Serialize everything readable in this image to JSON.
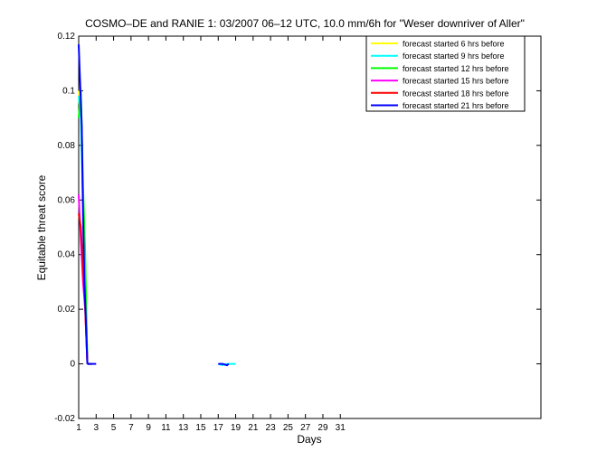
{
  "chart_data": {
    "type": "line",
    "title": "COSMO–DE and RANIE 1: 03/2007 06–12 UTC, 10.0 mm/6h for \"Weser downriver of Aller\"",
    "xlabel": "Days",
    "ylabel": "Equitable threat score",
    "xlim": [
      1,
      54
    ],
    "ylim": [
      -0.02,
      0.12
    ],
    "xticks": [
      1,
      3,
      5,
      7,
      9,
      11,
      13,
      15,
      17,
      19,
      21,
      23,
      25,
      27,
      29,
      31
    ],
    "xtick_labels": [
      "1",
      "3",
      "5",
      "7",
      "9",
      "11",
      "13",
      "15",
      "17",
      "19",
      "21",
      "23",
      "25",
      "27",
      "29",
      "31"
    ],
    "yticks": [
      -0.02,
      0,
      0.02,
      0.04,
      0.06,
      0.08,
      0.1,
      0.12
    ],
    "ytick_labels": [
      "-0.02",
      "0",
      "0.02",
      "0.04",
      "0.06",
      "0.08",
      "0.1",
      "0.12"
    ],
    "grid": false,
    "legend_position": "top-right",
    "series": [
      {
        "name": "forecast started 6 hrs before",
        "color": "#ffff00",
        "segments": [
          [
            [
              1,
              0.1
            ],
            [
              1.25,
              0.094
            ],
            [
              1.5,
              0.06
            ],
            [
              1.75,
              0.035
            ],
            [
              2,
              0.0
            ]
          ],
          [
            [
              2,
              0.0
            ],
            [
              2.5,
              0.0
            ]
          ]
        ]
      },
      {
        "name": "forecast started 9 hrs before",
        "color": "#00ffff",
        "segments": [
          [
            [
              1,
              0.098
            ],
            [
              1.25,
              0.09
            ],
            [
              1.5,
              0.058
            ],
            [
              1.75,
              0.032
            ],
            [
              2,
              0.0
            ]
          ],
          [
            [
              2,
              0.0
            ],
            [
              2.5,
              0.0
            ]
          ],
          [
            [
              17,
              0.0
            ],
            [
              17.5,
              -0.0005
            ],
            [
              18,
              0.0
            ],
            [
              18.5,
              0.0
            ],
            [
              19,
              0.0
            ]
          ]
        ]
      },
      {
        "name": "forecast started 12 hrs before",
        "color": "#00ff00",
        "segments": [
          [
            [
              1,
              0.09
            ],
            [
              1.25,
              0.1
            ],
            [
              1.5,
              0.065
            ],
            [
              1.75,
              0.04
            ],
            [
              2,
              0.0
            ]
          ],
          [
            [
              2,
              0.0
            ],
            [
              2.5,
              0.0
            ]
          ]
        ]
      },
      {
        "name": "forecast started 15 hrs before",
        "color": "#ff00ff",
        "segments": [
          [
            [
              1,
              0.062
            ],
            [
              1.25,
              0.045
            ],
            [
              1.5,
              0.03
            ],
            [
              1.75,
              0.02
            ],
            [
              2,
              0.0
            ]
          ],
          [
            [
              2,
              0.0
            ],
            [
              2.5,
              0.0
            ]
          ]
        ]
      },
      {
        "name": "forecast started 18 hrs before",
        "color": "#ff0000",
        "segments": [
          [
            [
              1,
              0.055
            ],
            [
              1.25,
              0.05
            ],
            [
              1.5,
              0.035
            ],
            [
              1.75,
              0.02
            ],
            [
              2,
              0.0
            ]
          ],
          [
            [
              2,
              0.0
            ],
            [
              2.5,
              0.0
            ]
          ]
        ]
      },
      {
        "name": "forecast started 21 hrs before",
        "color": "#0000ff",
        "segments": [
          [
            [
              1,
              0.117
            ],
            [
              1.2,
              0.1
            ],
            [
              1.35,
              0.087
            ],
            [
              1.5,
              0.055
            ],
            [
              1.65,
              0.03
            ],
            [
              1.8,
              0.018
            ],
            [
              2,
              0.0
            ]
          ],
          [
            [
              2,
              0.0
            ],
            [
              3,
              0.0
            ]
          ],
          [
            [
              17,
              0.0
            ],
            [
              17.5,
              0.0
            ],
            [
              18,
              -0.0005
            ],
            [
              18.2,
              0.0
            ]
          ]
        ]
      }
    ]
  }
}
